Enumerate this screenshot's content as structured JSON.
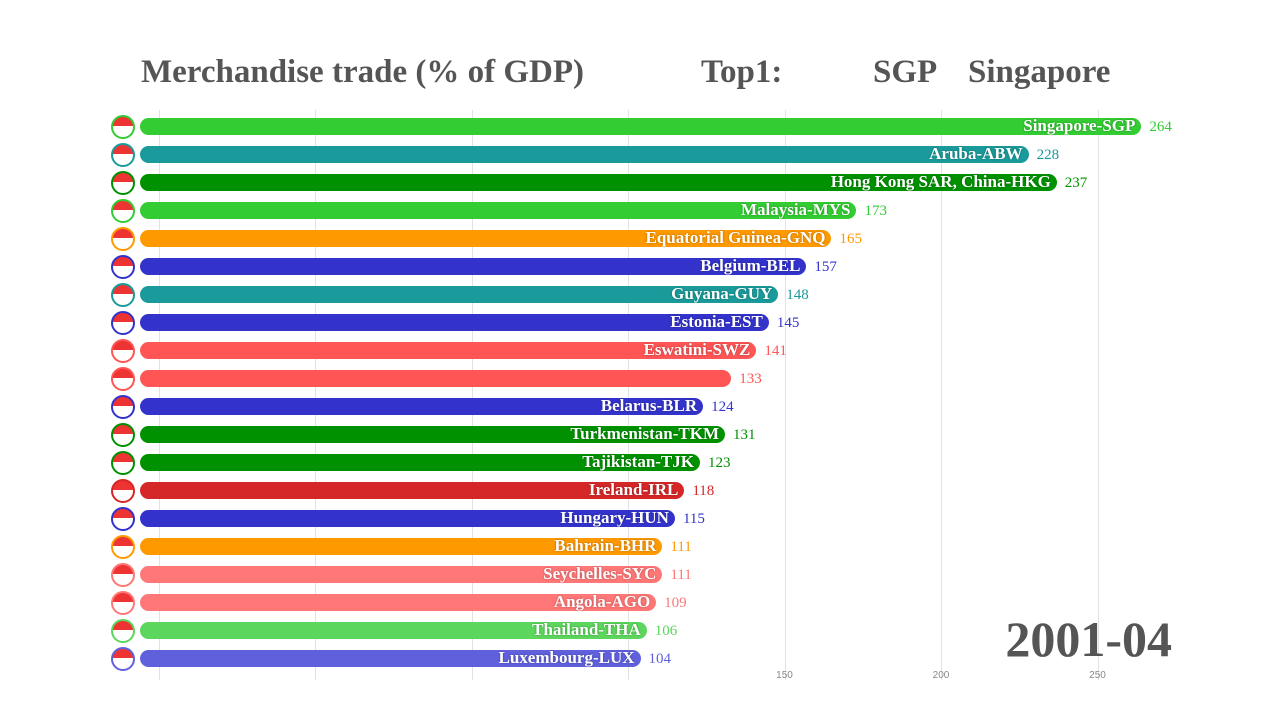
{
  "header": {
    "title": "Merchandise trade (% of GDP)",
    "top_label": "Top1:",
    "top_code": "SGP",
    "top_name": "Singapore"
  },
  "date": "2001-04",
  "chart_data": {
    "type": "bar",
    "orientation": "horizontal",
    "title": "Merchandise trade (% of GDP)",
    "x_ticks": [
      150,
      200,
      250
    ],
    "grid": true,
    "bars": [
      {
        "label": "Singapore-SGP",
        "value": 264,
        "color": "#33cc33"
      },
      {
        "label": "Aruba-ABW",
        "value": 228,
        "color": "#1a9a9a"
      },
      {
        "label": "Hong Kong SAR, China-HKG",
        "value": 237,
        "color": "#009100"
      },
      {
        "label": "Malaysia-MYS",
        "value": 173,
        "color": "#33cc33"
      },
      {
        "label": "Equatorial Guinea-GNQ",
        "value": 165,
        "color": "#ff9900"
      },
      {
        "label": "Belgium-BEL",
        "value": 157,
        "color": "#3333cc"
      },
      {
        "label": "Guyana-GUY",
        "value": 148,
        "color": "#1a9a9a"
      },
      {
        "label": "Estonia-EST",
        "value": 145,
        "color": "#3333cc"
      },
      {
        "label": "Eswatini-SWZ",
        "value": 141,
        "color": "#ff5555"
      },
      {
        "label": "",
        "value": 133,
        "color": "#ff5555"
      },
      {
        "label": "Belarus-BLR",
        "value": 124,
        "color": "#3333cc"
      },
      {
        "label": "Turkmenistan-TKM",
        "value": 131,
        "color": "#009100"
      },
      {
        "label": "Tajikistan-TJK",
        "value": 123,
        "color": "#009100"
      },
      {
        "label": "Ireland-IRL",
        "value": 118,
        "color": "#d62728"
      },
      {
        "label": "Hungary-HUN",
        "value": 115,
        "color": "#3333cc"
      },
      {
        "label": "Bahrain-BHR",
        "value": 111,
        "color": "#ff9900"
      },
      {
        "label": "Seychelles-SYC",
        "value": 111,
        "color": "#ff7777"
      },
      {
        "label": "Angola-AGO",
        "value": 109,
        "color": "#ff7777"
      },
      {
        "label": "Thailand-THA",
        "value": 106,
        "color": "#5cd65c"
      },
      {
        "label": "Luxembourg-LUX",
        "value": 104,
        "color": "#6060dd"
      }
    ]
  }
}
